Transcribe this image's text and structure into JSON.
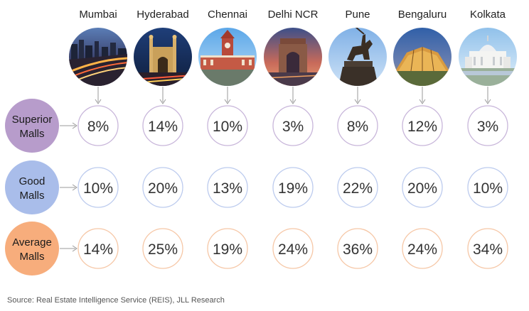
{
  "chart_data": {
    "type": "table",
    "title": "",
    "cities": [
      "Mumbai",
      "Hyderabad",
      "Chennai",
      "Delhi NCR",
      "Pune",
      "Bengaluru",
      "Kolkata"
    ],
    "city_icons": [
      "mumbai-marine-drive-photo",
      "charminar-photo",
      "chennai-central-photo",
      "india-gate-photo",
      "shivaji-statue-photo",
      "bengaluru-glass-house-photo",
      "victoria-memorial-photo"
    ],
    "series": [
      {
        "name": "Superior Malls",
        "lines": [
          "Superior",
          "Malls"
        ],
        "fill": "#b79ccb",
        "ring": "#c8b6da",
        "labels": [
          "8%",
          "14%",
          "10%",
          "3%",
          "8%",
          "12%",
          "3%"
        ],
        "values": [
          8,
          14,
          10,
          3,
          8,
          12,
          3
        ]
      },
      {
        "name": "Good Malls",
        "lines": [
          "Good",
          "Malls"
        ],
        "fill": "#a9bdea",
        "ring": "#bccbee",
        "labels": [
          "10%",
          "20%",
          "13%",
          "19%",
          "22%",
          "20%",
          "10%"
        ],
        "values": [
          10,
          20,
          13,
          19,
          22,
          20,
          10
        ]
      },
      {
        "name": "Average Malls",
        "lines": [
          "Average",
          "Malls"
        ],
        "fill": "#f7ad7c",
        "ring": "#f6c7a6",
        "labels": [
          "14%",
          "25%",
          "19%",
          "24%",
          "36%",
          "24%",
          "34%"
        ],
        "values": [
          14,
          25,
          19,
          24,
          36,
          24,
          34
        ]
      }
    ],
    "arrow_color": "#9a9a9a",
    "source": "Source: Real Estate Intelligence Service (REIS), JLL Research"
  }
}
